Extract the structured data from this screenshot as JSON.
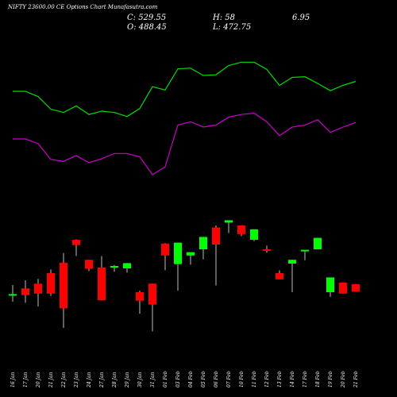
{
  "header": {
    "title": "NIFTY 23600.00 CE Options Chart Munafasutra.com",
    "close": "C: 529.55",
    "open": "O: 488.45",
    "high": "H: 58",
    "low": "L: 472.75",
    "extra": "6.95"
  },
  "colors": {
    "background": "#000000",
    "up": "#00ff00",
    "down": "#ff0000",
    "line_green": "#00dd00",
    "line_magenta": "#cc00cc"
  },
  "chart_data": {
    "type": "candlestick",
    "x_labels": [
      "16 Jan",
      "17 Jan",
      "20 Jan",
      "21 Jan",
      "22 Jan",
      "23 Jan",
      "24 Jan",
      "27 Jan",
      "28 Jan",
      "29 Jan",
      "30 Jan",
      "31 Jan",
      "01 Feb",
      "03 Feb",
      "04 Feb",
      "05 Feb",
      "06 Feb",
      "07 Feb",
      "10 Feb",
      "11 Feb",
      "12 Feb",
      "13 Feb",
      "14 Feb",
      "17 Feb",
      "18 Feb",
      "19 Feb",
      "20 Feb",
      "21 Feb"
    ],
    "ohlc": [
      [
        296,
        296,
        315,
        280
      ],
      [
        308,
        294,
        325,
        278
      ],
      [
        318,
        297,
        328,
        270
      ],
      [
        340,
        297,
        348,
        292
      ],
      [
        362,
        266,
        382,
        225
      ],
      [
        410,
        399,
        411,
        376
      ],
      [
        368,
        349,
        364,
        344
      ],
      [
        352,
        283,
        376,
        327
      ],
      [
        353,
        355,
        357,
        343
      ],
      [
        350,
        361,
        349,
        341
      ],
      [
        300,
        282,
        303,
        255
      ],
      [
        318,
        274,
        307,
        218
      ],
      [
        402,
        377,
        403,
        346
      ],
      [
        359,
        404,
        359,
        303
      ],
      [
        377,
        384,
        377,
        358
      ],
      [
        390,
        416,
        390,
        369
      ],
      [
        436,
        400,
        440,
        314
      ],
      [
        446,
        451,
        445,
        424
      ],
      [
        440,
        422,
        438,
        418
      ],
      [
        410,
        432,
        410,
        407
      ],
      [
        390,
        388,
        398,
        383
      ],
      [
        340,
        327,
        346,
        340
      ],
      [
        360,
        368,
        367,
        300
      ],
      [
        387,
        389,
        369,
        367
      ],
      [
        390,
        414,
        390,
        399
      ],
      [
        300,
        331,
        303,
        290
      ],
      [
        320,
        297,
        318,
        322
      ],
      [
        317,
        301,
        308,
        308
      ]
    ],
    "green_line": [
      240,
      240,
      232,
      213,
      208,
      218,
      205,
      210,
      208,
      202,
      214,
      247,
      242,
      274,
      275,
      264,
      265,
      279,
      284,
      284,
      273,
      249,
      261,
      262,
      252,
      241,
      249,
      255
    ],
    "magenta_line": [
      168,
      168,
      161,
      137,
      134,
      143,
      132,
      138,
      146,
      146,
      141,
      114,
      126,
      189,
      194,
      186,
      189,
      201,
      205,
      207,
      194,
      173,
      186,
      189,
      197,
      178,
      186,
      193
    ],
    "line_ylim": [
      0,
      300
    ]
  }
}
